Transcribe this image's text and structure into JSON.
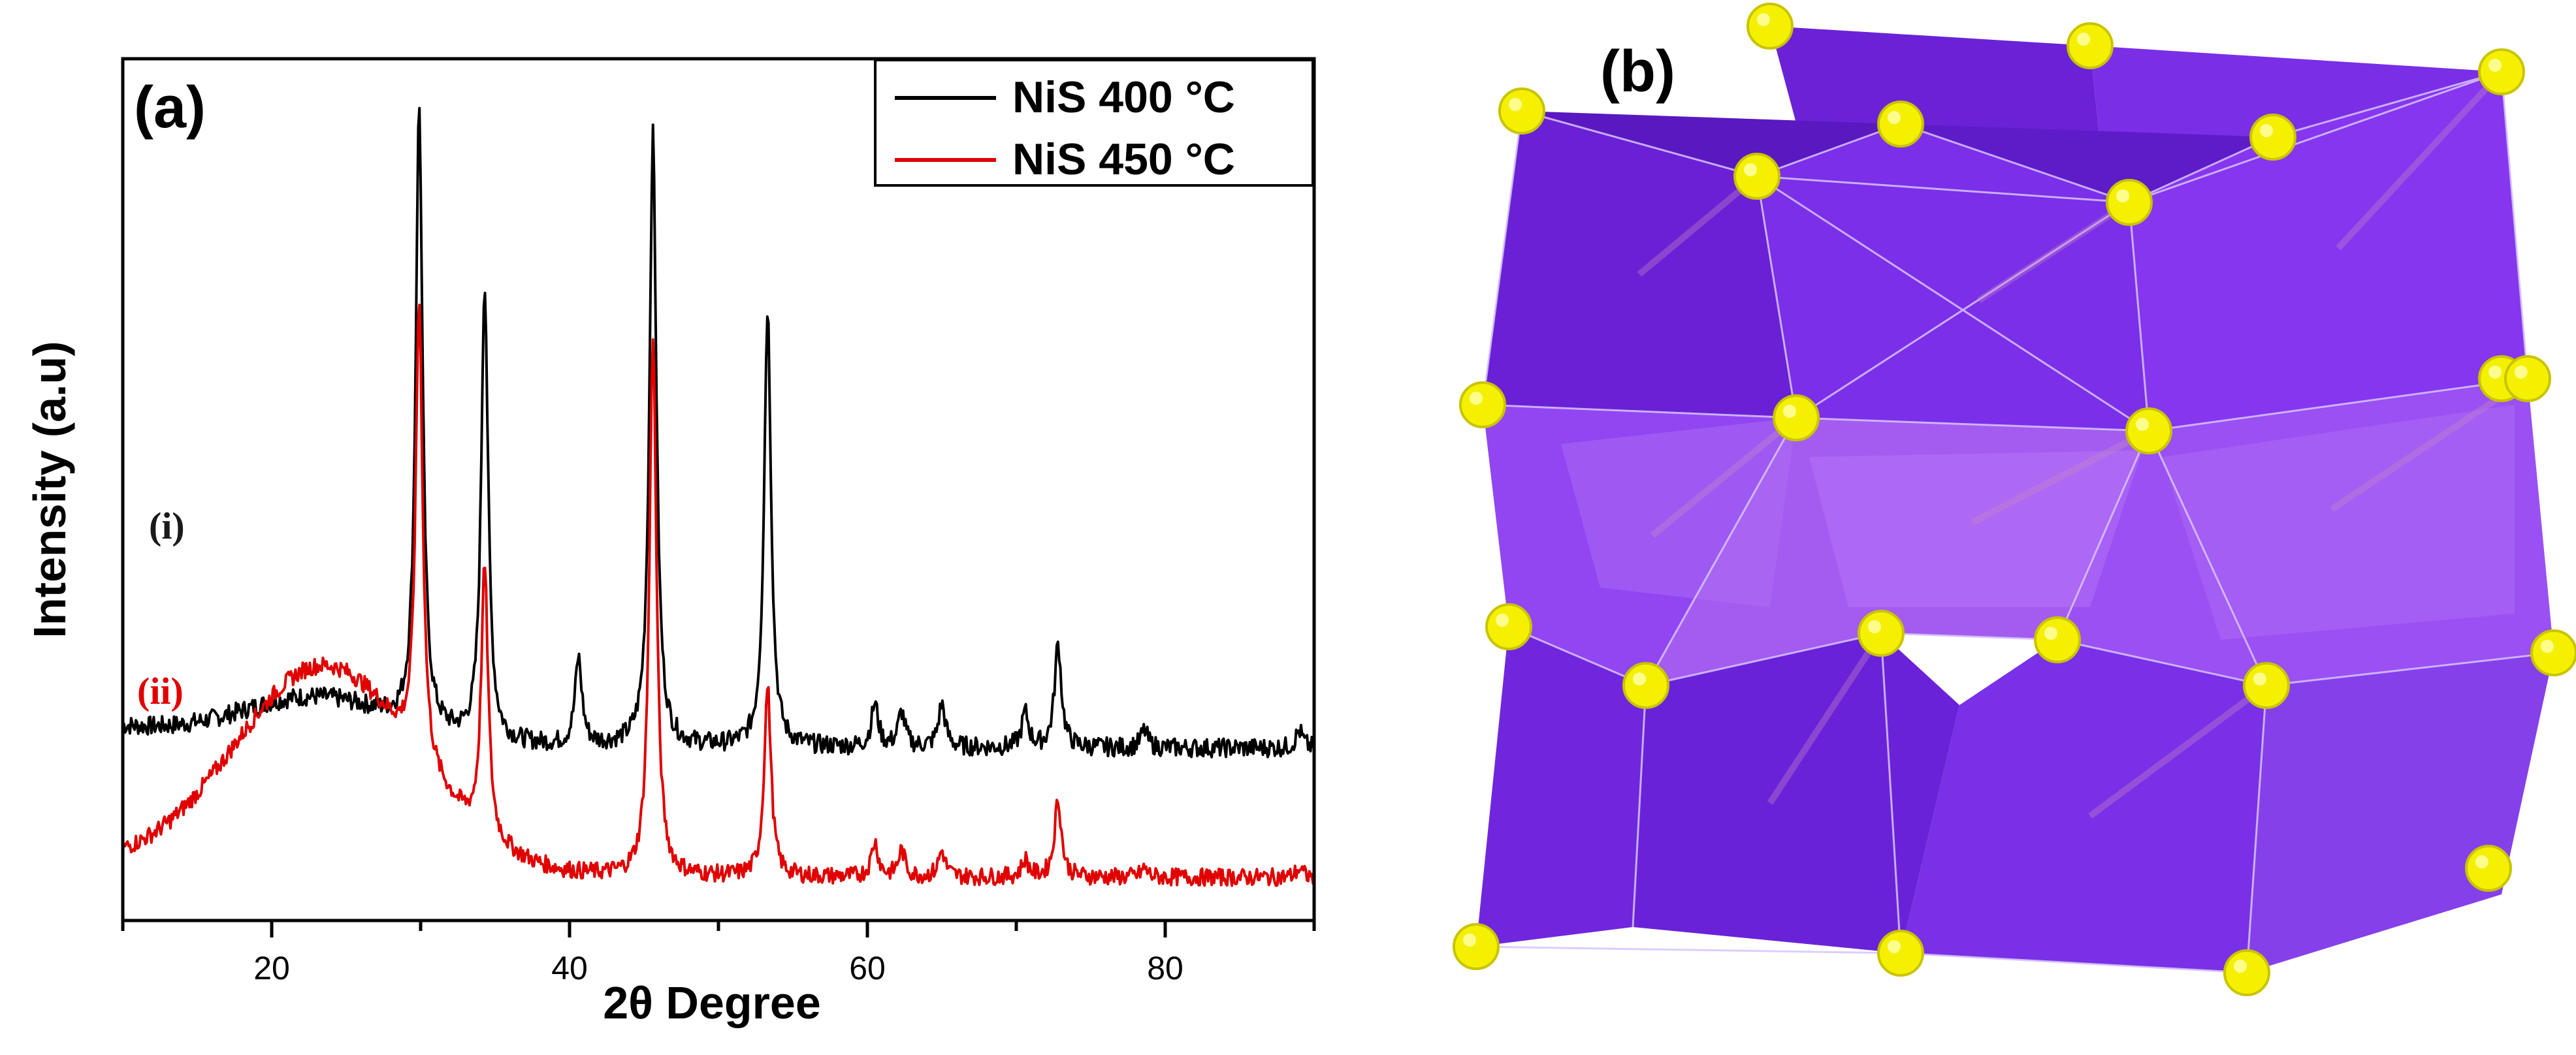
{
  "panel_a": {
    "label": "(a)",
    "curve_labels": [
      "(i)",
      "(ii)"
    ]
  },
  "panel_b": {
    "label": "(b)",
    "colors": {
      "octahedron": "#7a2ee6",
      "octahedron_light": "#a45cf0",
      "sulfur": "#f5f000"
    }
  },
  "chart_data": {
    "type": "line",
    "title": "",
    "xlabel": "2θ Degree",
    "ylabel": "Intensity (a.u)",
    "xlim": [
      10,
      90
    ],
    "ylim": [
      0,
      100
    ],
    "xticks": [
      20,
      40,
      60,
      80
    ],
    "grid": false,
    "legend_position": "top-right",
    "series": [
      {
        "name": "NiS 400 °C",
        "label": "(i)",
        "color": "#000000",
        "baseline": 20,
        "hump": {
          "center": 23,
          "width": 5,
          "height": 5
        },
        "peaks": [
          {
            "x": 29.9,
            "height": 72
          },
          {
            "x": 34.3,
            "height": 53
          },
          {
            "x": 40.6,
            "height": 10
          },
          {
            "x": 45.6,
            "height": 71
          },
          {
            "x": 53.3,
            "height": 51
          },
          {
            "x": 60.5,
            "height": 5
          },
          {
            "x": 62.3,
            "height": 4
          },
          {
            "x": 65.0,
            "height": 5
          },
          {
            "x": 70.6,
            "height": 4
          },
          {
            "x": 72.8,
            "height": 12
          },
          {
            "x": 78.6,
            "height": 2
          },
          {
            "x": 89.0,
            "height": 2
          }
        ]
      },
      {
        "name": "NiS 450 °C",
        "label": "(ii)",
        "color": "#e00000",
        "baseline": 5,
        "hump": {
          "center": 23.5,
          "width": 6,
          "height": 24
        },
        "peaks": [
          {
            "x": 29.9,
            "height": 53
          },
          {
            "x": 34.3,
            "height": 31
          },
          {
            "x": 45.6,
            "height": 63
          },
          {
            "x": 53.3,
            "height": 22
          },
          {
            "x": 60.5,
            "height": 4
          },
          {
            "x": 62.3,
            "height": 3
          },
          {
            "x": 65.0,
            "height": 3
          },
          {
            "x": 70.6,
            "height": 2
          },
          {
            "x": 72.8,
            "height": 9
          },
          {
            "x": 78.6,
            "height": 1
          },
          {
            "x": 89.0,
            "height": 1
          }
        ]
      }
    ]
  }
}
